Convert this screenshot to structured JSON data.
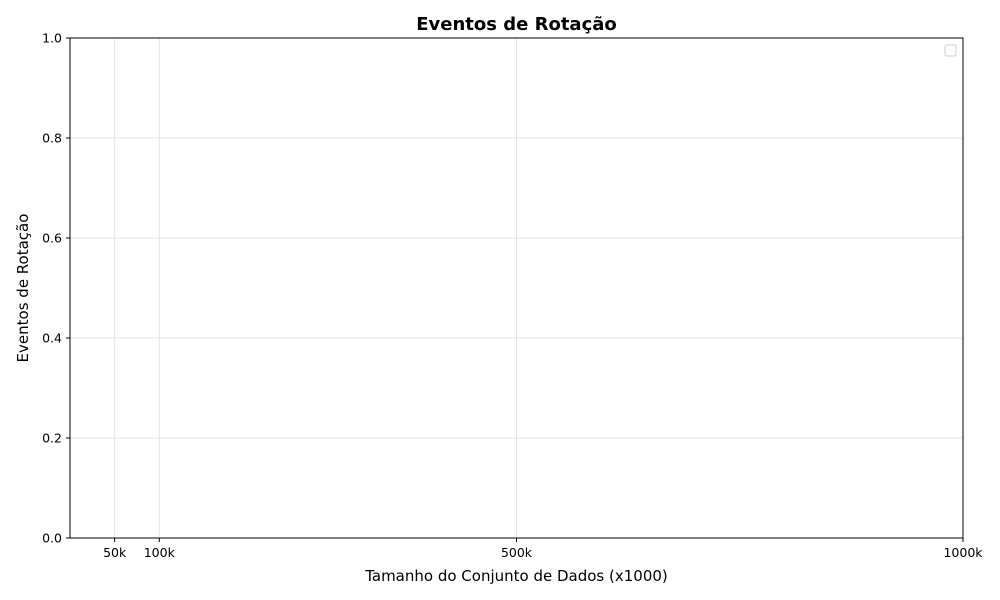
{
  "chart_data": {
    "type": "line",
    "title": "Eventos de Rotação",
    "xlabel": "Tamanho do Conjunto de Dados (x1000)",
    "ylabel": "Eventos de Rotação",
    "x_ticks": [
      {
        "value": 50,
        "label": "50k"
      },
      {
        "value": 100,
        "label": "100k"
      },
      {
        "value": 500,
        "label": "500k"
      },
      {
        "value": 1000,
        "label": "1000k"
      }
    ],
    "y_ticks": [
      {
        "value": 0.0,
        "label": "0.0"
      },
      {
        "value": 0.2,
        "label": "0.2"
      },
      {
        "value": 0.4,
        "label": "0.4"
      },
      {
        "value": 0.6,
        "label": "0.6"
      },
      {
        "value": 0.8,
        "label": "0.8"
      },
      {
        "value": 1.0,
        "label": "1.0"
      }
    ],
    "xlim": [
      0,
      1000
    ],
    "ylim": [
      0,
      1
    ],
    "grid": true,
    "legend_position": "top-right",
    "series": []
  }
}
